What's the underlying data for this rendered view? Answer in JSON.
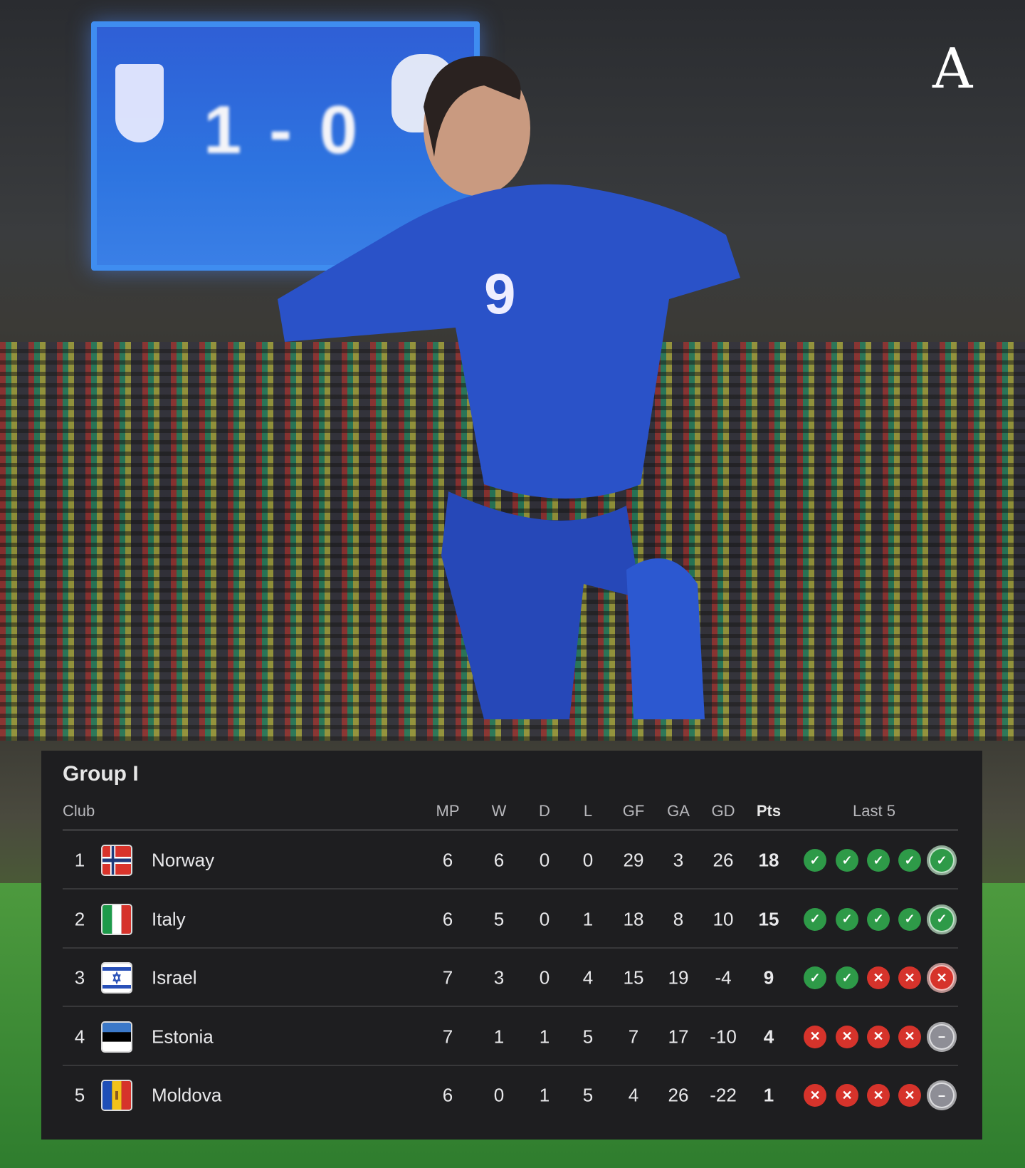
{
  "background": {
    "scoreboard_score": "1 - 0",
    "brand_logo": "A"
  },
  "table": {
    "title": "Group I",
    "headers": {
      "club": "Club",
      "mp": "MP",
      "w": "W",
      "d": "D",
      "l": "L",
      "gf": "GF",
      "ga": "GA",
      "gd": "GD",
      "pts": "Pts",
      "last5": "Last 5"
    },
    "rows": [
      {
        "rank": "1",
        "club": "Norway",
        "flag": "norway",
        "mp": "6",
        "w": "6",
        "d": "0",
        "l": "0",
        "gf": "29",
        "ga": "3",
        "gd": "26",
        "pts": "18",
        "last5": [
          "W",
          "W",
          "W",
          "W",
          "W"
        ]
      },
      {
        "rank": "2",
        "club": "Italy",
        "flag": "italy",
        "mp": "6",
        "w": "5",
        "d": "0",
        "l": "1",
        "gf": "18",
        "ga": "8",
        "gd": "10",
        "pts": "15",
        "last5": [
          "W",
          "W",
          "W",
          "W",
          "W"
        ]
      },
      {
        "rank": "3",
        "club": "Israel",
        "flag": "israel",
        "mp": "7",
        "w": "3",
        "d": "0",
        "l": "4",
        "gf": "15",
        "ga": "19",
        "gd": "-4",
        "pts": "9",
        "last5": [
          "W",
          "W",
          "L",
          "L",
          "L"
        ]
      },
      {
        "rank": "4",
        "club": "Estonia",
        "flag": "estonia",
        "mp": "7",
        "w": "1",
        "d": "1",
        "l": "5",
        "gf": "7",
        "ga": "17",
        "gd": "-10",
        "pts": "4",
        "last5": [
          "L",
          "L",
          "L",
          "L",
          "D"
        ]
      },
      {
        "rank": "5",
        "club": "Moldova",
        "flag": "moldova",
        "mp": "6",
        "w": "0",
        "d": "1",
        "l": "5",
        "gf": "4",
        "ga": "26",
        "gd": "-22",
        "pts": "1",
        "last5": [
          "L",
          "L",
          "L",
          "L",
          "D"
        ]
      }
    ]
  },
  "colors": {
    "win": "#2e9a48",
    "loss": "#d6332b",
    "draw": "#8e8e96",
    "panel": "#1e1e20"
  }
}
